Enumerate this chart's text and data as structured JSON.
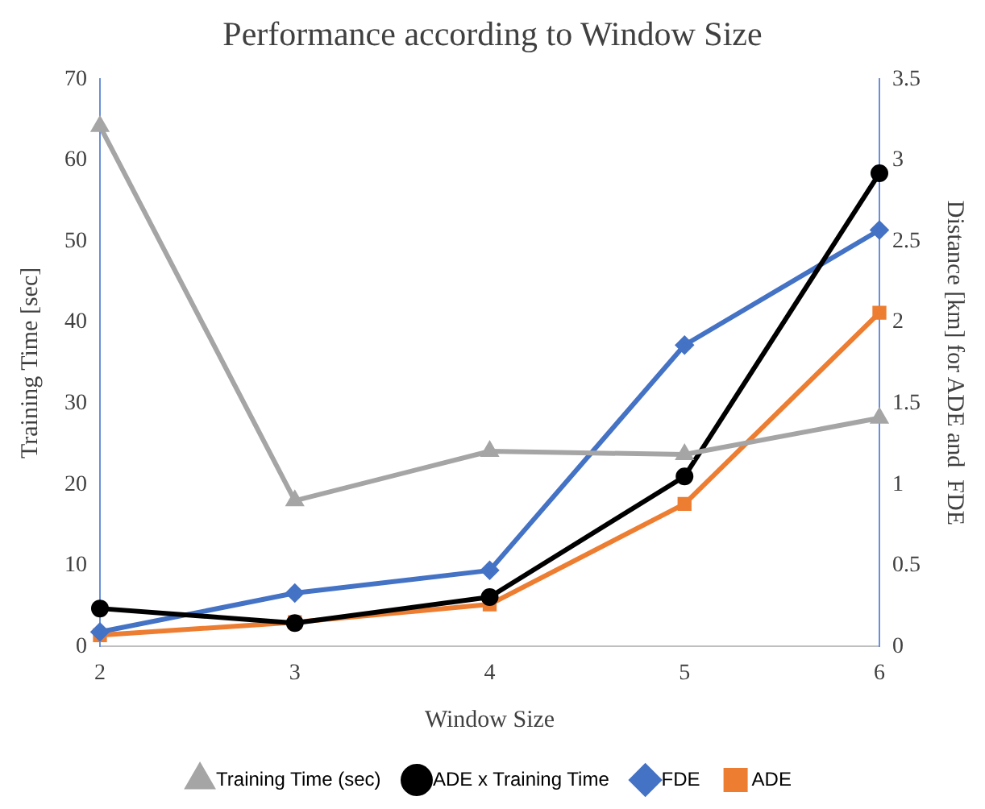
{
  "chart_data": {
    "type": "line",
    "title": "Performance according to Window Size",
    "xlabel": "Window Size",
    "ylabel": "Training Time [sec]",
    "y2label": "Distance [km] for ADE and  FDE",
    "categories": [
      "2",
      "3",
      "4",
      "5",
      "6"
    ],
    "series": [
      {
        "name": "Training Time (sec)",
        "color": "#a5a5a5",
        "marker": "triangle",
        "values": [
          64.2,
          18,
          24.1,
          23.7,
          28.2
        ]
      },
      {
        "name": "ADE x Training Time",
        "color": "#000000",
        "marker": "circle",
        "values": [
          4.7,
          2.9,
          6.1,
          21,
          58.4
        ]
      },
      {
        "name": "FDE",
        "color": "#4472c4",
        "marker": "diamond",
        "axis": "y2",
        "values": [
          0.09,
          0.33,
          0.47,
          1.86,
          2.57
        ]
      },
      {
        "name": "ADE",
        "color": "#ed7d31",
        "marker": "square",
        "axis": "y2",
        "values": [
          0.07,
          0.15,
          0.26,
          0.88,
          2.06
        ]
      }
    ],
    "ylim": [
      0,
      70
    ],
    "yticks": [
      0,
      10,
      20,
      30,
      40,
      50,
      60,
      70
    ],
    "y2lim": [
      0,
      3.5
    ],
    "y2ticks": [
      0,
      0.5,
      1,
      1.5,
      2,
      2.5,
      3,
      3.5
    ],
    "grid": false,
    "legend": "bottom"
  }
}
